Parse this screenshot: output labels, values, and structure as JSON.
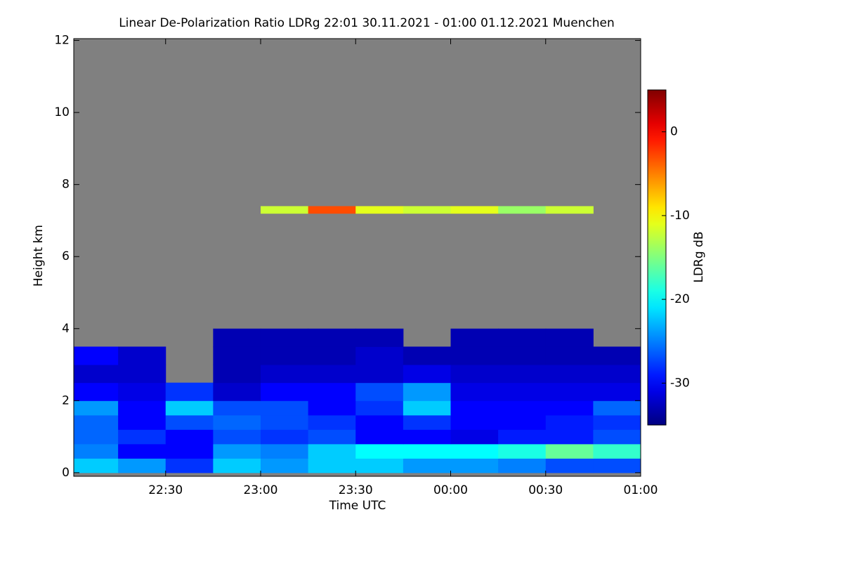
{
  "chart_data": {
    "type": "heatmap",
    "title": "Linear De-Polarization Ratio LDRg   22:01 30.11.2021 - 01:00 01.12.2021 Muenchen",
    "xlabel": "Time UTC",
    "ylabel": "Height km",
    "colorbar_label": "LDRg dB",
    "colormap": "jet",
    "no_data_color": "#808080",
    "xlim": [
      1,
      180
    ],
    "xticks": [
      {
        "value": 30,
        "label": "22:30"
      },
      {
        "value": 60,
        "label": "23:00"
      },
      {
        "value": 90,
        "label": "23:30"
      },
      {
        "value": 120,
        "label": "00:00"
      },
      {
        "value": 150,
        "label": "00:30"
      },
      {
        "value": 180,
        "label": "01:00"
      }
    ],
    "ylim": [
      -0.1,
      12.05
    ],
    "yticks": [
      0,
      2,
      4,
      6,
      8,
      10,
      12
    ],
    "zlim": [
      -35,
      5
    ],
    "zticks": [
      0,
      -10,
      -20,
      -30
    ],
    "x_bins": [
      1,
      15,
      30,
      45,
      60,
      75,
      90,
      105,
      120,
      135,
      150,
      165,
      180
    ],
    "y_bins": [
      0,
      0.4,
      0.8,
      1.2,
      1.6,
      2,
      2.5,
      3,
      3.5,
      4,
      7.2,
      7.4
    ],
    "z": [
      [
        -22,
        -24,
        -28,
        -22,
        -24,
        -22,
        -22,
        -24,
        -24,
        -25,
        -27,
        -27
      ],
      [
        -25,
        -30,
        -30,
        -24,
        -25,
        -22,
        -20,
        -20,
        -20,
        -19,
        -16,
        -18
      ],
      [
        -26,
        -28,
        -30,
        -27,
        -28,
        -27,
        -30,
        -30,
        -31,
        -29,
        -29,
        -27
      ],
      [
        -26,
        -30,
        -27,
        -26,
        -27,
        -28,
        -30,
        -28,
        -30,
        -30,
        -29,
        -28
      ],
      [
        -24,
        -30,
        -22,
        -27,
        -27,
        -30,
        -28,
        -22,
        -30,
        -30,
        -30,
        -26
      ],
      [
        -30,
        -31,
        -28,
        -32,
        -30,
        -30,
        -27,
        -24,
        -31,
        -31,
        -31,
        -31
      ],
      [
        -32,
        -32,
        null,
        -33,
        -32,
        -32,
        -32,
        -31,
        -32,
        -32,
        -32,
        -32
      ],
      [
        -30,
        -32,
        null,
        -33,
        -33,
        -33,
        -32,
        -33,
        -33,
        -33,
        -33,
        -33
      ],
      [
        null,
        null,
        null,
        -33,
        -33,
        -33,
        -33,
        null,
        -33,
        -33,
        -33,
        null
      ],
      [
        null,
        null,
        null,
        null,
        null,
        null,
        null,
        null,
        null,
        null,
        null,
        null
      ],
      [
        null,
        null,
        null,
        null,
        -12,
        -3,
        -11,
        -12,
        -11,
        -14,
        -12,
        null
      ]
    ]
  }
}
